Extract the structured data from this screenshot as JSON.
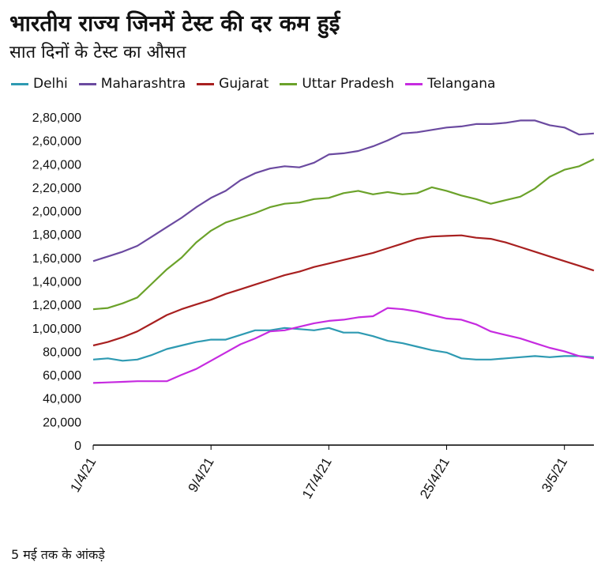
{
  "chart_data": {
    "type": "line",
    "title": "भारतीय राज्य जिनमें टेस्ट की दर कम हुई",
    "subtitle": "सात दिनों के टेस्ट का औसत",
    "footnote": "5 मई तक के आंकड़े",
    "xlabel": "",
    "ylabel": "",
    "ylim": [
      0,
      280000
    ],
    "yticks": [
      0,
      20000,
      40000,
      60000,
      80000,
      100000,
      120000,
      140000,
      160000,
      180000,
      200000,
      220000,
      240000,
      260000,
      280000
    ],
    "ytick_labels": [
      "0",
      "20,000",
      "40,000",
      "60,000",
      "80,000",
      "1,00,000",
      "1,20,000",
      "1,40,000",
      "1,60,000",
      "1,80,000",
      "2,00,000",
      "2,20,000",
      "2,40,000",
      "2,60,000",
      "2,80,000"
    ],
    "x_tick_labels": [
      {
        "index": 0,
        "label": "1/4/21"
      },
      {
        "index": 8,
        "label": "9/4/21"
      },
      {
        "index": 16,
        "label": "17/4/21"
      },
      {
        "index": 24,
        "label": "25/4/21"
      },
      {
        "index": 32,
        "label": "3/5/21"
      }
    ],
    "x_count": 35,
    "legend_position": "top",
    "series": [
      {
        "name": "Delhi",
        "color": "#2E9AB2",
        "values": [
          73000,
          74000,
          72000,
          73000,
          77000,
          82000,
          85000,
          88000,
          90000,
          90000,
          94000,
          98000,
          98000,
          100000,
          99000,
          98000,
          100000,
          96000,
          96000,
          93000,
          89000,
          87000,
          84000,
          81000,
          79000,
          74000,
          73000,
          73000,
          74000,
          75000,
          76000,
          75000,
          76000,
          76000,
          75000
        ]
      },
      {
        "name": "Maharashtra",
        "color": "#6B4AA0",
        "values": [
          157000,
          161000,
          165000,
          170000,
          178000,
          186000,
          194000,
          203000,
          211000,
          217000,
          226000,
          232000,
          236000,
          238000,
          237000,
          241000,
          248000,
          249000,
          251000,
          255000,
          260000,
          266000,
          267000,
          269000,
          271000,
          272000,
          274000,
          274000,
          275000,
          277000,
          277000,
          273000,
          271000,
          265000,
          266000
        ]
      },
      {
        "name": "Gujarat",
        "color": "#A82020",
        "values": [
          85000,
          88000,
          92000,
          97000,
          104000,
          111000,
          116000,
          120000,
          124000,
          129000,
          133000,
          137000,
          141000,
          145000,
          148000,
          152000,
          155000,
          158000,
          161000,
          164000,
          168000,
          172000,
          176000,
          178000,
          178500,
          179000,
          177000,
          176000,
          173000,
          169000,
          165000,
          161000,
          157000,
          153000,
          149000
        ]
      },
      {
        "name": "Uttar Pradesh",
        "color": "#6BA22A",
        "values": [
          116000,
          117000,
          121000,
          126000,
          138000,
          150000,
          160000,
          173000,
          183000,
          190000,
          194000,
          198000,
          203000,
          206000,
          207000,
          210000,
          211000,
          215000,
          217000,
          214000,
          216000,
          214000,
          215000,
          220000,
          217000,
          213000,
          210000,
          206000,
          209000,
          212000,
          219000,
          229000,
          235000,
          238000,
          244000
        ]
      },
      {
        "name": "Telangana",
        "color": "#C62BE0",
        "values": [
          53000,
          53500,
          54000,
          54500,
          54500,
          54500,
          60000,
          65000,
          72000,
          79000,
          86000,
          91000,
          97000,
          98000,
          101000,
          104000,
          106000,
          107000,
          109000,
          110000,
          117000,
          116000,
          114000,
          111000,
          108000,
          107000,
          103000,
          97000,
          94000,
          91000,
          87000,
          83000,
          80000,
          76000,
          74000
        ]
      }
    ]
  }
}
